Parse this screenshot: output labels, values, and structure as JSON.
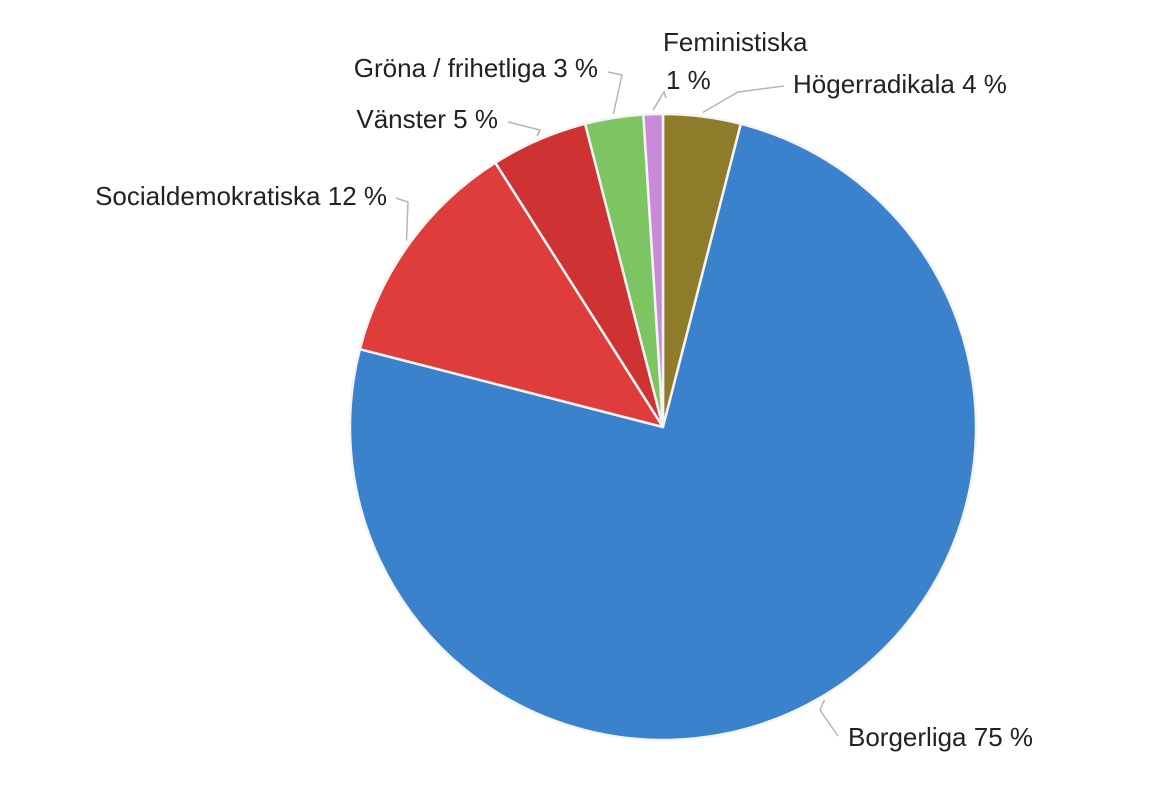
{
  "chart_data": {
    "type": "pie",
    "title": "",
    "slices": [
      {
        "label": "Högerradikala 4 %",
        "value": 4,
        "color": "#8e7c2a"
      },
      {
        "label": "Borgerliga 75 %",
        "value": 75,
        "color": "#3b82cc"
      },
      {
        "label": "Socialdemokratiska 12 %",
        "value": 12,
        "color": "#df3c3c"
      },
      {
        "label": "Vänster 5 %",
        "value": 5,
        "color": "#cf3232"
      },
      {
        "label": "Gröna / frihetliga 3 %",
        "value": 3,
        "color": "#7dc463"
      },
      {
        "label": "Feministiska 1 %",
        "label_lines": [
          "Feministiska",
          "1 %"
        ],
        "value": 1,
        "color": "#c98bd9"
      }
    ],
    "legend": "none"
  }
}
